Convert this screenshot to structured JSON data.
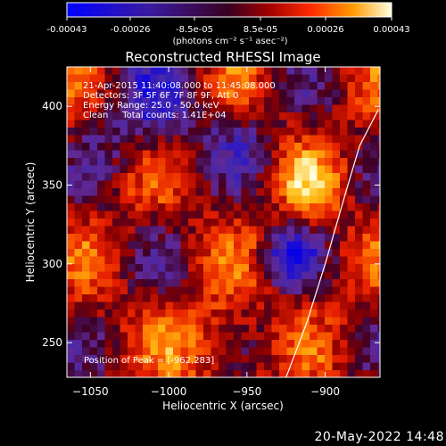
{
  "colorbar": {
    "ticks": [
      "-0.00043",
      "-0.00026",
      "-8.5e-05",
      "8.5e-05",
      "0.00026",
      "0.00043"
    ],
    "unit_label": "(photons cm⁻² s⁻¹ asec⁻²)",
    "range": [
      -0.00043,
      0.00043
    ]
  },
  "chart_data": {
    "type": "heatmap",
    "title": "Reconstructed RHESSI Image",
    "xlabel": "Heliocentric X (arcsec)",
    "ylabel": "Heliocentric Y (arcsec)",
    "xlim": [
      -1065,
      -865
    ],
    "ylim": [
      228,
      425
    ],
    "x_ticks": [
      -1050,
      -1000,
      -950,
      -900
    ],
    "y_ticks": [
      250,
      300,
      350,
      400
    ],
    "x_tick_labels": [
      "−1050",
      "−1000",
      "−950",
      "−900"
    ],
    "y_tick_labels": [
      "250",
      "300",
      "350",
      "400"
    ],
    "annotations": [
      "21-Apr-2015 11:40:08.000 to 11:45:08.000",
      "Detectors: 3F 5F 6F 7F 8F 9F, Att 0",
      "Energy Range: 25.0 - 50.0 keV",
      "Clean     Total counts: 1.41E+04"
    ],
    "peak_label": "Position of Peak = [-962,283]",
    "limb_arc_points": [
      [
        -925,
        228
      ],
      [
        -912,
        262
      ],
      [
        -900,
        300
      ],
      [
        -887,
        345
      ],
      [
        -878,
        375
      ],
      [
        -866,
        398
      ]
    ]
  },
  "footer": {
    "date": "20-May-2022 14:48"
  }
}
